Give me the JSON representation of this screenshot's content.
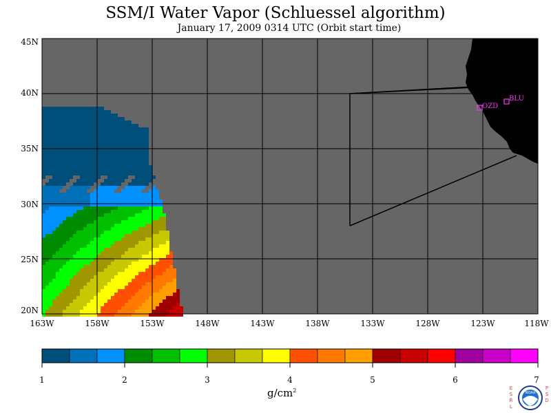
{
  "title": "SSM/I Water Vapor (Schluessel algorithm)",
  "subtitle": "January 17, 2009  0314 UTC  (Orbit start time)",
  "map": {
    "lat_labels": [
      "45N",
      "40N",
      "35N",
      "30N",
      "25N",
      "20N"
    ],
    "lon_labels": [
      "163W",
      "158W",
      "153W",
      "148W",
      "143W",
      "138W",
      "133W",
      "128W",
      "123W",
      "118W"
    ],
    "lat_range": [
      20,
      45
    ],
    "lon_range": [
      -163,
      -118
    ],
    "stations": [
      {
        "name": "OZD"
      },
      {
        "name": "BLU"
      }
    ],
    "colors": {
      "no_data": "#666666",
      "land": "#000000",
      "station": "#ff33ff",
      "grid": "#000000"
    }
  },
  "colorbar": {
    "tick_labels": [
      "1",
      "2",
      "3",
      "4",
      "5",
      "6",
      "7"
    ],
    "range": [
      1,
      7
    ],
    "colors": [
      "#004f7a",
      "#0070b8",
      "#0090ff",
      "#008c00",
      "#00c000",
      "#00ff00",
      "#a09600",
      "#c8c800",
      "#ffff00",
      "#ff5000",
      "#ff7800",
      "#ffa000",
      "#a00000",
      "#c80000",
      "#ff0000",
      "#a000a0",
      "#c800c8",
      "#ff00ff"
    ],
    "unit_main": "g/cm",
    "unit_exp": "2"
  },
  "logo": {
    "left_letters": [
      "E",
      "S",
      "R",
      "L"
    ],
    "right_letters": [
      "P",
      "S",
      "D"
    ],
    "center": "NOAA"
  }
}
